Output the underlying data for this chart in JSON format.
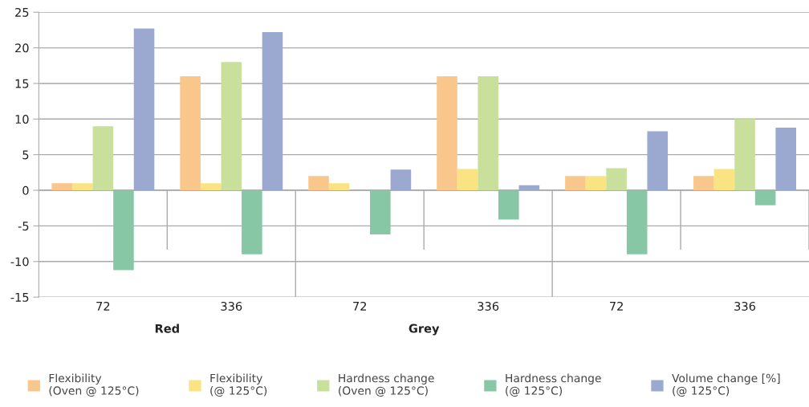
{
  "chart_data": {
    "type": "bar",
    "categories": [
      "72",
      "336",
      "72",
      "336",
      "72",
      "336"
    ],
    "series": [
      {
        "name": "Flexibility\n(Oven @ 125°C)",
        "color": "#f9c78b",
        "values": [
          1,
          16,
          2,
          16,
          2,
          2
        ]
      },
      {
        "name": "Flexibility\n(@ 125°C)",
        "color": "#fae383",
        "values": [
          1,
          1,
          1,
          3,
          2,
          3
        ]
      },
      {
        "name": "Hardness change\n(Oven @ 125°C)",
        "color": "#c8e09c",
        "values": [
          9,
          18,
          0,
          16,
          3.1,
          10
        ]
      },
      {
        "name": "Hardness change\n(@ 125°C)",
        "color": "#88c7a6",
        "values": [
          -11.2,
          -9,
          -6.2,
          -4.1,
          -9,
          -2.1
        ]
      },
      {
        "name": "Volume change [%]\n(@ 125°C)",
        "color": "#9ba9d1",
        "values": [
          22.7,
          22.2,
          2.9,
          0.7,
          8.3,
          8.8
        ]
      }
    ],
    "annotations": [
      "Red",
      "Grey"
    ],
    "ylim": [
      -15,
      25
    ],
    "yticks": [
      -15,
      -10,
      -5,
      0,
      5,
      10,
      15,
      20,
      25
    ],
    "grid": "y",
    "legend": "bottom"
  }
}
